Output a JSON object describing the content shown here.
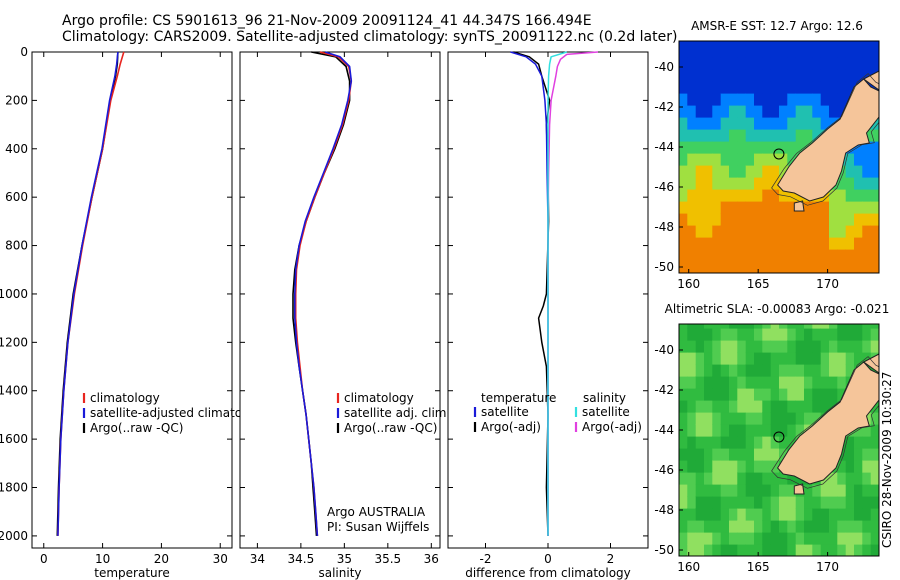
{
  "figure": {
    "title_line1": "Argo profile: CS 5901613_96 21-Nov-2009 20091124_41 44.347S 166.494E",
    "title_line2": "Climatology: CARS2009. Satellite-adjusted climatology: synTS_20091122.nc (0.2d later)",
    "stamp": "CSIRO 28-Nov-2009 10:30:27",
    "colors": {
      "climatology": "#e8251f",
      "satellite": "#1a1ad8",
      "argo": "#000000",
      "satellite_sal": "#33e0e0",
      "argo_sal": "#e040e0",
      "land": "#f5c59a",
      "coast": "#222222"
    }
  },
  "chart_data": [
    {
      "type": "line",
      "xlabel": "temperature",
      "xlim": [
        -2,
        32
      ],
      "ylim": [
        2050,
        0
      ],
      "xticks": [
        "0",
        "10",
        "20",
        "30"
      ],
      "yticks": [
        "0",
        "200",
        "400",
        "600",
        "800",
        "1000",
        "1200",
        "1400",
        "1600",
        "1800",
        "2000"
      ],
      "legend": [
        "climatology",
        "satellite-adjusted climatology",
        "Argo(..raw -QC)"
      ],
      "legend_position": "lower-left",
      "series": [
        {
          "name": "climatology",
          "depth": [
            0,
            50,
            100,
            200,
            400,
            600,
            800,
            1000,
            1200,
            1400,
            1600,
            1800,
            2000
          ],
          "values": [
            13.6,
            13.0,
            12.5,
            11.4,
            10.0,
            8.2,
            6.6,
            5.2,
            4.1,
            3.4,
            2.9,
            2.6,
            2.4
          ]
        },
        {
          "name": "satellite-adjusted climatology",
          "depth": [
            0,
            50,
            100,
            200,
            400,
            600,
            800,
            1000,
            1200,
            1400,
            1600,
            1800,
            2000
          ],
          "values": [
            12.6,
            12.4,
            12.1,
            11.2,
            9.9,
            8.1,
            6.5,
            5.1,
            4.1,
            3.4,
            2.9,
            2.6,
            2.4
          ]
        },
        {
          "name": "Argo(..raw -QC)",
          "depth": [
            0,
            50,
            100,
            200,
            400,
            600,
            800,
            1000,
            1200,
            1400,
            1600,
            1800,
            2000
          ],
          "values": [
            12.6,
            12.5,
            12.2,
            11.3,
            10.0,
            8.2,
            6.5,
            5.0,
            4.0,
            3.3,
            2.8,
            2.5,
            2.3
          ]
        }
      ]
    },
    {
      "type": "line",
      "xlabel": "salinity",
      "xlim": [
        33.8,
        36.1
      ],
      "ylim": [
        2050,
        0
      ],
      "xticks": [
        "34",
        "34.5",
        "35",
        "35.5",
        "36"
      ],
      "legend": [
        "climatology",
        "satellite adj. clim.",
        "Argo(..raw -QC)"
      ],
      "legend_position": "lower-right",
      "annotation": [
        "Argo AUSTRALIA",
        "PI: Susan Wijffels"
      ],
      "series": [
        {
          "name": "climatology",
          "depth": [
            0,
            20,
            60,
            120,
            200,
            300,
            400,
            500,
            600,
            700,
            800,
            900,
            1000,
            1100,
            1200,
            1300,
            1400,
            1500,
            1600,
            1700,
            1800,
            1900,
            2000
          ],
          "values": [
            34.72,
            34.93,
            35.05,
            35.08,
            35.05,
            34.98,
            34.88,
            34.77,
            34.66,
            34.56,
            34.49,
            34.45,
            34.44,
            34.44,
            34.46,
            34.49,
            34.52,
            34.56,
            34.59,
            34.62,
            34.65,
            34.67,
            34.69
          ]
        },
        {
          "name": "satellite adj. clim.",
          "depth": [
            0,
            20,
            60,
            120,
            200,
            300,
            400,
            500,
            600,
            700,
            800,
            900,
            1000,
            1100,
            1200,
            1300,
            1400,
            1500,
            1600,
            1700,
            1800,
            1900,
            2000
          ],
          "values": [
            34.78,
            34.95,
            35.06,
            35.08,
            35.04,
            34.97,
            34.87,
            34.76,
            34.65,
            34.55,
            34.48,
            34.44,
            34.43,
            34.43,
            34.45,
            34.48,
            34.52,
            34.56,
            34.59,
            34.62,
            34.65,
            34.67,
            34.69
          ]
        },
        {
          "name": "Argo(..raw -QC)",
          "depth": [
            0,
            20,
            60,
            120,
            200,
            300,
            400,
            500,
            600,
            700,
            800,
            900,
            1000,
            1100,
            1200,
            1300,
            1400,
            1500,
            1600,
            1700,
            1800,
            1900,
            2000
          ],
          "values": [
            34.62,
            34.9,
            35.02,
            35.06,
            35.06,
            34.99,
            34.89,
            34.77,
            34.66,
            34.56,
            34.48,
            34.43,
            34.41,
            34.41,
            34.44,
            34.48,
            34.52,
            34.56,
            34.59,
            34.62,
            34.64,
            34.66,
            34.68
          ]
        }
      ]
    },
    {
      "type": "line",
      "xlabel": "difference from climatology",
      "xlim": [
        -3.2,
        3.2
      ],
      "ylim": [
        2050,
        0
      ],
      "xticks": [
        "-2",
        "0",
        "2"
      ],
      "legend_headers": [
        "temperature",
        "salinity"
      ],
      "legend_left": [
        "satellite",
        "Argo(-adj)"
      ],
      "legend_right": [
        "satellite",
        "Argo(-adj)"
      ],
      "legend_position": "lower-center",
      "series": [
        {
          "name": "temperature satellite",
          "depth": [
            0,
            20,
            50,
            100,
            200,
            300,
            500,
            700,
            1000,
            1200,
            1500,
            1800,
            2000
          ],
          "values": [
            -1.2,
            -0.7,
            -0.4,
            -0.2,
            -0.1,
            -0.05,
            -0.03,
            0.0,
            0.0,
            0.0,
            0.0,
            0.0,
            0.0
          ]
        },
        {
          "name": "temperature Argo(-adj)",
          "depth": [
            0,
            20,
            50,
            100,
            200,
            300,
            500,
            700,
            1000,
            1050,
            1100,
            1150,
            1200,
            1300,
            1500,
            1800,
            2000
          ],
          "values": [
            -1.1,
            -0.6,
            -0.3,
            -0.2,
            0.05,
            -0.05,
            0.0,
            0.02,
            -0.05,
            -0.15,
            -0.3,
            -0.25,
            -0.2,
            -0.05,
            0.0,
            -0.05,
            0.0
          ]
        },
        {
          "name": "salinity satellite",
          "depth": [
            0,
            20,
            50,
            100,
            200,
            300,
            500,
            700,
            1000,
            1200,
            1500,
            1800,
            2000
          ],
          "values": [
            0.6,
            0.1,
            0.05,
            0.02,
            0.0,
            0.0,
            0.0,
            0.0,
            0.0,
            0.0,
            0.0,
            0.0,
            0.0
          ]
        },
        {
          "name": "salinity Argo(-adj)",
          "depth": [
            0,
            10,
            30,
            60,
            100,
            200,
            300,
            500,
            700,
            1000,
            1200,
            1500,
            1800,
            2000
          ],
          "values": [
            1.6,
            0.6,
            0.4,
            0.3,
            0.25,
            0.1,
            0.05,
            0.02,
            0.0,
            0.0,
            0.0,
            0.0,
            0.0,
            0.0
          ]
        }
      ]
    },
    {
      "type": "heatmap",
      "title": "AMSR-E SST: 12.7 Argo: 12.6",
      "xlim": [
        159.3,
        173.7
      ],
      "ylim": [
        -50.3,
        -38.7
      ],
      "xticks": [
        "160",
        "165",
        "170"
      ],
      "yticks": [
        "-40",
        "-42",
        "-44",
        "-46",
        "-48",
        "-50"
      ],
      "marker": {
        "lon": 166.494,
        "lat": -44.347
      }
    },
    {
      "type": "heatmap",
      "title": "Altimetric SLA: -0.00083 Argo: -0.021",
      "xlim": [
        159.3,
        173.7
      ],
      "ylim": [
        -50.3,
        -38.7
      ],
      "xticks": [
        "160",
        "165",
        "170"
      ],
      "yticks": [
        "-40",
        "-42",
        "-44",
        "-46",
        "-48",
        "-50"
      ],
      "marker": {
        "lon": 166.494,
        "lat": -44.347
      }
    }
  ]
}
